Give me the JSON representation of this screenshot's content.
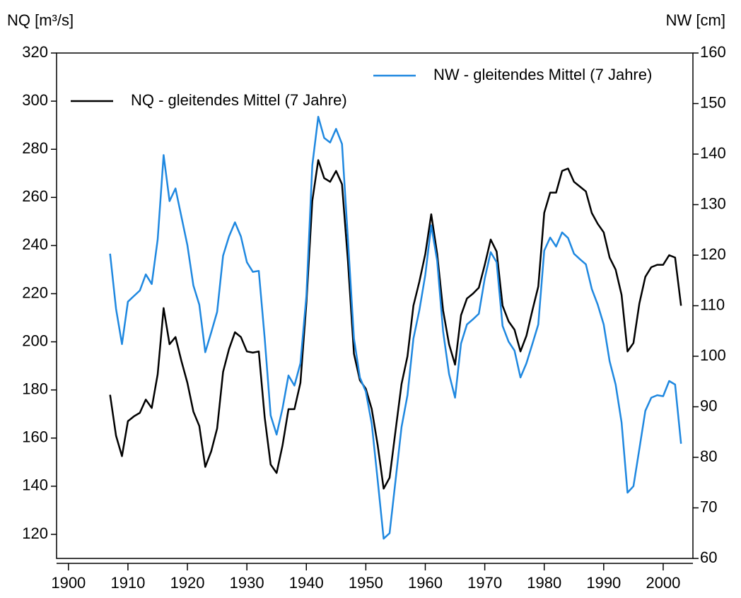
{
  "chart_data": {
    "type": "line",
    "y_label": "NQ [m³/s]",
    "y2_label": "NW [cm]",
    "x": [
      1907,
      1908,
      1909,
      1910,
      1911,
      1912,
      1913,
      1914,
      1915,
      1916,
      1917,
      1918,
      1919,
      1920,
      1921,
      1922,
      1923,
      1924,
      1925,
      1926,
      1927,
      1928,
      1929,
      1930,
      1931,
      1932,
      1933,
      1934,
      1935,
      1936,
      1937,
      1938,
      1939,
      1940,
      1941,
      1942,
      1943,
      1944,
      1945,
      1946,
      1947,
      1948,
      1949,
      1950,
      1951,
      1952,
      1953,
      1954,
      1955,
      1956,
      1957,
      1958,
      1959,
      1960,
      1961,
      1962,
      1963,
      1964,
      1965,
      1966,
      1967,
      1968,
      1969,
      1970,
      1971,
      1972,
      1973,
      1974,
      1975,
      1976,
      1977,
      1978,
      1979,
      1980,
      1981,
      1982,
      1983,
      1984,
      1985,
      1986,
      1987,
      1988,
      1989,
      1990,
      1991,
      1992,
      1993,
      1994,
      1995,
      1996,
      1997,
      1998,
      1999,
      2000,
      2001,
      2002,
      2003
    ],
    "series": [
      {
        "name": "NQ - gleitendes Mittel (7 Jahre)",
        "color": "#000000",
        "axis": "y",
        "values": [
          178,
          161,
          152.5,
          167,
          169,
          170.5,
          176,
          172.5,
          186.5,
          214,
          199,
          202,
          192,
          183,
          171,
          165,
          148,
          154.5,
          164,
          187.5,
          197,
          204,
          202,
          196,
          195.5,
          196,
          168.5,
          149,
          145.5,
          157,
          172,
          172,
          183,
          216,
          258.6,
          275.5,
          268,
          266.5,
          271,
          265.5,
          233.5,
          195,
          184,
          180.5,
          172,
          157,
          139,
          143.5,
          163,
          182.5,
          194,
          215,
          225,
          236.5,
          253,
          236.5,
          213,
          199,
          190.5,
          211,
          218,
          220,
          222.5,
          232,
          242.5,
          237.5,
          215,
          208.5,
          205,
          196,
          202.5,
          213,
          223,
          253.6,
          262,
          262,
          271,
          272,
          266.5,
          264.5,
          262.5,
          253.5,
          249,
          245.5,
          235,
          230,
          219.5,
          196,
          199.5,
          216,
          227,
          231,
          232,
          232,
          236,
          235,
          215
        ]
      },
      {
        "name": "NW - gleitendes Mittel (7 Jahre)",
        "color": "#1f88e0",
        "axis": "y2",
        "values": [
          120.3,
          109.4,
          102.4,
          110.8,
          111.9,
          113,
          116.2,
          114.3,
          123.1,
          139.8,
          130.7,
          133.2,
          127.6,
          122,
          114,
          110.2,
          100.8,
          104.7,
          108.8,
          119.9,
          123.7,
          126.5,
          123.7,
          118.6,
          116.7,
          116.9,
          103.5,
          88.3,
          84.5,
          89.7,
          96.2,
          94.2,
          98.6,
          111.9,
          137.8,
          147.4,
          143.2,
          142.3,
          145,
          142,
          123.1,
          103.5,
          95.8,
          93,
          86.6,
          75.4,
          63.9,
          65,
          75.4,
          86,
          92.3,
          103.5,
          109.1,
          116.1,
          125.9,
          118.9,
          104.9,
          96.5,
          91.8,
          102.5,
          106.3,
          107.3,
          108.4,
          115.4,
          120.6,
          118.6,
          106,
          102.9,
          101.1,
          95.8,
          98.6,
          102.4,
          106.3,
          120.9,
          123.5,
          121.7,
          124.5,
          123.4,
          120.3,
          119.2,
          118.2,
          113.3,
          110.2,
          106.3,
          99,
          94.4,
          86.9,
          73,
          74.3,
          81.7,
          89.2,
          91.8,
          92.3,
          92.1,
          95.1,
          94.4,
          82.7
        ]
      }
    ],
    "xlim": [
      1898,
      2005
    ],
    "xticks": [
      1900,
      1910,
      1920,
      1930,
      1940,
      1950,
      1960,
      1970,
      1980,
      1990,
      2000
    ],
    "ylim": [
      110,
      320
    ],
    "yticks": [
      120,
      140,
      160,
      180,
      200,
      220,
      240,
      260,
      280,
      300,
      320
    ],
    "y2lim": [
      60,
      160
    ],
    "y2ticks": [
      60,
      70,
      80,
      90,
      100,
      110,
      120,
      130,
      140,
      150,
      160
    ]
  }
}
